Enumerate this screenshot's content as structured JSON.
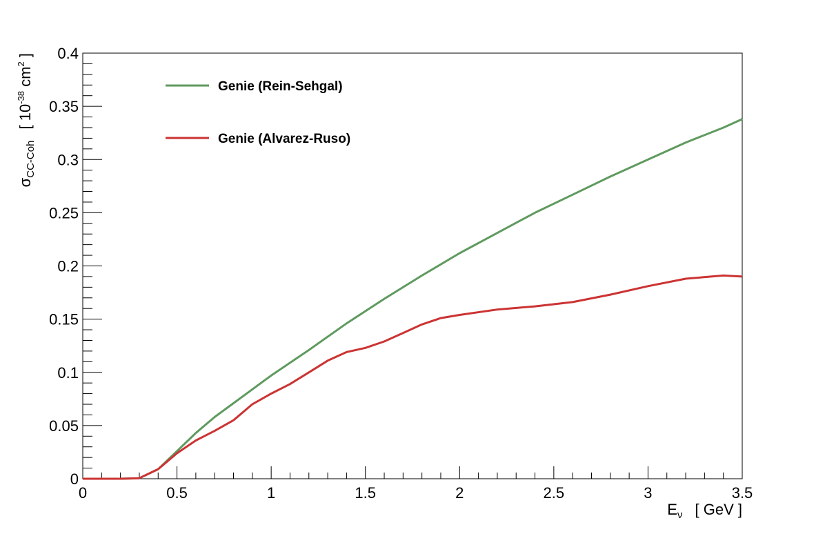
{
  "chart_data": {
    "type": "line",
    "title": "",
    "xlabel": {
      "base": "E",
      "subscript": "ν",
      "unit": "[ GeV ]"
    },
    "ylabel": {
      "base": "σ",
      "subscript": "CC-Coh",
      "unit_open": "[ 10",
      "unit_exp": "-38",
      "unit_mid": " cm",
      "unit_exp2": "2",
      "unit_close": " ]"
    },
    "xlim": [
      0,
      3.5
    ],
    "ylim": [
      0,
      0.4
    ],
    "x_ticks": [
      "0",
      "0.5",
      "1",
      "1.5",
      "2",
      "2.5",
      "3",
      "3.5"
    ],
    "y_ticks": [
      "0",
      "0.05",
      "0.1",
      "0.15",
      "0.2",
      "0.25",
      "0.3",
      "0.35",
      "0.4"
    ],
    "grid": false,
    "legend_position": "top-left",
    "series": [
      {
        "name": "Genie (Rein-Sehgal)",
        "color": "#5f9a5f",
        "x": [
          0,
          0.1,
          0.2,
          0.3,
          0.4,
          0.5,
          0.6,
          0.7,
          0.8,
          0.9,
          1.0,
          1.2,
          1.4,
          1.6,
          1.8,
          2.0,
          2.2,
          2.4,
          2.6,
          2.8,
          3.0,
          3.2,
          3.4,
          3.5
        ],
        "y": [
          0,
          0,
          0,
          0.0005,
          0.009,
          0.026,
          0.043,
          0.058,
          0.071,
          0.084,
          0.097,
          0.121,
          0.146,
          0.169,
          0.191,
          0.212,
          0.231,
          0.25,
          0.267,
          0.284,
          0.3,
          0.316,
          0.33,
          0.338
        ]
      },
      {
        "name": "Genie (Alvarez-Ruso)",
        "color": "#cc3333",
        "x": [
          0,
          0.1,
          0.2,
          0.3,
          0.4,
          0.5,
          0.6,
          0.7,
          0.8,
          0.9,
          1.0,
          1.1,
          1.2,
          1.3,
          1.4,
          1.5,
          1.6,
          1.7,
          1.8,
          1.9,
          2.0,
          2.2,
          2.4,
          2.6,
          2.8,
          3.0,
          3.2,
          3.4,
          3.5
        ],
        "y": [
          0,
          0,
          0,
          0.0005,
          0.009,
          0.024,
          0.036,
          0.045,
          0.055,
          0.07,
          0.08,
          0.089,
          0.1,
          0.111,
          0.119,
          0.123,
          0.129,
          0.137,
          0.145,
          0.151,
          0.154,
          0.159,
          0.162,
          0.166,
          0.173,
          0.181,
          0.188,
          0.191,
          0.19
        ]
      }
    ]
  }
}
